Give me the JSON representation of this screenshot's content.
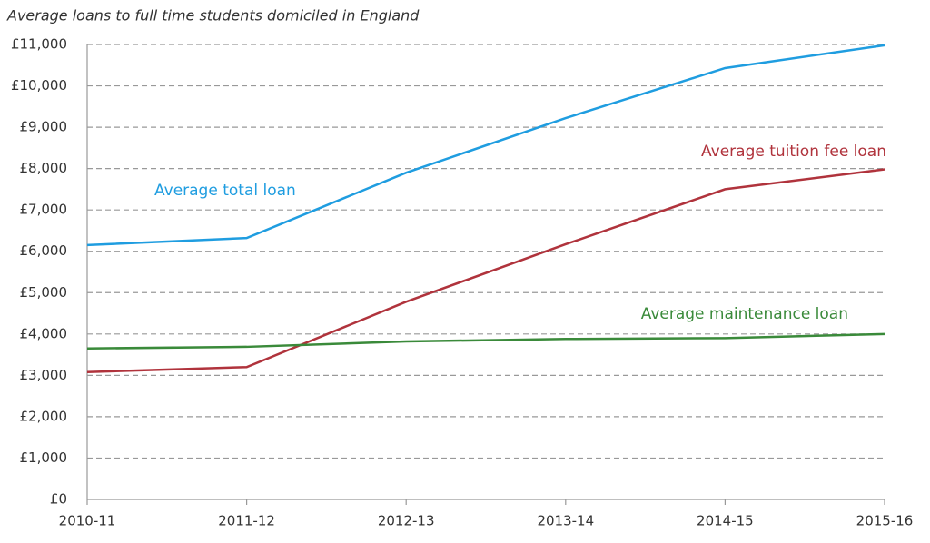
{
  "chart_data": {
    "type": "line",
    "title": "Average loans to full time students domiciled in England",
    "categories": [
      "2010-11",
      "2011-12",
      "2012-13",
      "2013-14",
      "2014-15",
      "2015-16"
    ],
    "series": [
      {
        "name": "Average total loan",
        "color": "#1f9de0",
        "values": [
          6150,
          6320,
          7900,
          9220,
          10430,
          10980
        ]
      },
      {
        "name": "Average tuition fee loan",
        "color": "#b0333c",
        "values": [
          3080,
          3200,
          4780,
          6170,
          7500,
          7980
        ]
      },
      {
        "name": "Average maintenance loan",
        "color": "#3a8a3a",
        "values": [
          3650,
          3690,
          3820,
          3880,
          3900,
          4000
        ]
      }
    ],
    "ylim": [
      0,
      11000
    ],
    "yticks": [
      {
        "value": 0,
        "label": "£0"
      },
      {
        "value": 1000,
        "label": "£1,000"
      },
      {
        "value": 2000,
        "label": "£2,000"
      },
      {
        "value": 3000,
        "label": "£3,000"
      },
      {
        "value": 4000,
        "label": "£4,000"
      },
      {
        "value": 5000,
        "label": "£5,000"
      },
      {
        "value": 6000,
        "label": "£6,000"
      },
      {
        "value": 7000,
        "label": "£7,000"
      },
      {
        "value": 8000,
        "label": "£8,000"
      },
      {
        "value": 9000,
        "label": "£9,000"
      },
      {
        "value": 10000,
        "label": "£10,000"
      },
      {
        "value": 11000,
        "label": "£11,000"
      }
    ],
    "grid": true
  }
}
